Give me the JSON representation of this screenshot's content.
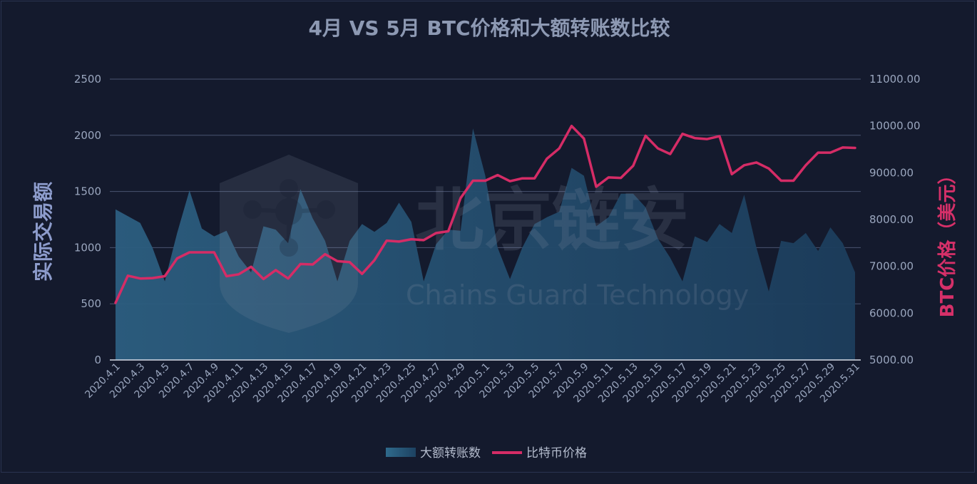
{
  "chart_data": {
    "type": "area+line",
    "title": "4月 VS 5月 BTC价格和大额转账数比较",
    "ylabel_left": "实际交易额",
    "ylabel_right": "BTC价格（美元）",
    "ylim_left": [
      0,
      2500
    ],
    "ylim_right": [
      5000,
      11000
    ],
    "yticks_left": [
      "0",
      "500",
      "1000",
      "1500",
      "2000",
      "2500"
    ],
    "yticks_right": [
      "5000.00",
      "6000.00",
      "7000.00",
      "8000.00",
      "9000.00",
      "10000.00",
      "11000.00"
    ],
    "grid": true,
    "legend_position": "bottom-center",
    "x": [
      "2020.4.1",
      "2020.4.2",
      "2020.4.3",
      "2020.4.4",
      "2020.4.5",
      "2020.4.6",
      "2020.4.7",
      "2020.4.8",
      "2020.4.9",
      "2020.4.10",
      "2020.4.11",
      "2020.4.12",
      "2020.4.13",
      "2020.4.14",
      "2020.4.15",
      "2020.4.16",
      "2020.4.17",
      "2020.4.18",
      "2020.4.19",
      "2020.4.20",
      "2020.4.21",
      "2020.4.22",
      "2020.4.23",
      "2020.4.24",
      "2020.4.25",
      "2020.4.26",
      "2020.4.27",
      "2020.4.28",
      "2020.4.29",
      "2020.4.30",
      "2020.5.1",
      "2020.5.2",
      "2020.5.3",
      "2020.5.4",
      "2020.5.5",
      "2020.5.6",
      "2020.5.7",
      "2020.5.8",
      "2020.5.9",
      "2020.5.10",
      "2020.5.11",
      "2020.5.12",
      "2020.5.13",
      "2020.5.14",
      "2020.5.15",
      "2020.5.16",
      "2020.5.17",
      "2020.5.18",
      "2020.5.19",
      "2020.5.20",
      "2020.5.21",
      "2020.5.22",
      "2020.5.23",
      "2020.5.24",
      "2020.5.25",
      "2020.5.26",
      "2020.5.27",
      "2020.5.28",
      "2020.5.29",
      "2020.5.30",
      "2020.5.31"
    ],
    "x_tick_labels": [
      "2020.4.1",
      "2020.4.3",
      "2020.4.5",
      "2020.4.7",
      "2020.4.9",
      "2020.4.11",
      "2020.4.13",
      "2020.4.15",
      "2020.4.17",
      "2020.4.19",
      "2020.4.21",
      "2020.4.23",
      "2020.4.25",
      "2020.4.27",
      "2020.4.29",
      "2020.5.1",
      "2020.5.3",
      "2020.5.5",
      "2020.5.7",
      "2020.5.9",
      "2020.5.11",
      "2020.5.13",
      "2020.5.15",
      "2020.5.17",
      "2020.5.19",
      "2020.5.21",
      "2020.5.23",
      "2020.5.25",
      "2020.5.27",
      "2020.5.29",
      "2020.5.31"
    ],
    "series": [
      {
        "name": "大额转账数",
        "type": "area",
        "axis": "left",
        "color": "#2a5f80",
        "values": [
          1340,
          1280,
          1220,
          1000,
          700,
          1130,
          1510,
          1170,
          1100,
          1150,
          920,
          780,
          1190,
          1160,
          1040,
          1520,
          1260,
          1060,
          700,
          1060,
          1210,
          1140,
          1220,
          1400,
          1230,
          700,
          1030,
          1160,
          1150,
          2060,
          1640,
          1000,
          720,
          1000,
          1210,
          1270,
          1320,
          1710,
          1640,
          1190,
          1270,
          1480,
          1480,
          1360,
          1080,
          910,
          700,
          1100,
          1050,
          1210,
          1130,
          1470,
          1000,
          610,
          1060,
          1040,
          1130,
          970,
          1180,
          1040,
          780
        ]
      },
      {
        "name": "比特币价格",
        "type": "line",
        "axis": "right",
        "color": "#d52c66",
        "values": [
          6220,
          6800,
          6740,
          6750,
          6790,
          7170,
          7300,
          7300,
          7300,
          6790,
          6830,
          6990,
          6730,
          6920,
          6740,
          7050,
          7040,
          7260,
          7110,
          7090,
          6840,
          7130,
          7550,
          7530,
          7580,
          7560,
          7710,
          7750,
          8460,
          8830,
          8830,
          8950,
          8820,
          8880,
          8880,
          9300,
          9520,
          10000,
          9730,
          8700,
          8900,
          8890,
          9150,
          9790,
          9520,
          9400,
          9830,
          9740,
          9720,
          9780,
          8970,
          9160,
          9220,
          9090,
          8830,
          8830,
          9160,
          9430,
          9430,
          9540,
          9530
        ]
      }
    ],
    "watermark": {
      "cn": "北京链安",
      "en": "Chains Guard Technology"
    }
  }
}
